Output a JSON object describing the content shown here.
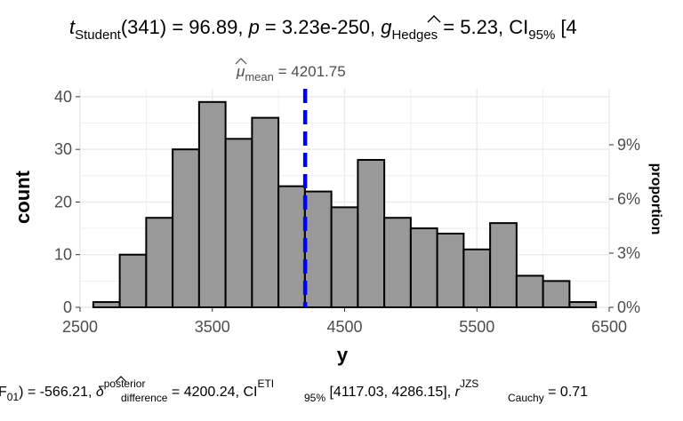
{
  "chart_data": {
    "type": "bar",
    "title": {
      "t": "t",
      "t_sub": "Student",
      "df": "(341)",
      "stat": " = 96.89, ",
      "p": "p",
      "p_val": " = 3.23e-250, ",
      "g": "g",
      "g_sub": "Hedges",
      "g_val": " = 5.23, CI",
      "ci_sub": "95%",
      "ci_val": " [4"
    },
    "caption": {
      "lead": "F",
      "lead_sub": "01",
      "lead_close": ") = -566.21, ",
      "delta_sup": "posterior",
      "delta_sub": "difference",
      "delta_val": " = 4200.24, CI",
      "ci_sup": "ETI",
      "ci_sub": "95%",
      "ci_val": " [4117.03, 4286.15], ",
      "r": "r",
      "r_sup": "JZS",
      "r_sub": "Cauchy",
      "r_val": " = 0.71"
    },
    "mean_label": {
      "mu": "μ",
      "sub": "mean",
      "value": " = 4201.75"
    },
    "xlabel": "y",
    "ylabel": "count",
    "y2label": "proportion",
    "xlim": [
      2500,
      6500
    ],
    "ylim": [
      0,
      41.5
    ],
    "x_ticks": [
      2500,
      3500,
      4500,
      5500,
      6500
    ],
    "y_ticks": [
      0,
      10,
      20,
      30,
      40
    ],
    "y2_ticks": [
      "0%",
      "3%",
      "6%",
      "9%"
    ],
    "y2_tick_counts": [
      0,
      10.29,
      20.58,
      30.87
    ],
    "mean": 4201.75,
    "bin_width": 200,
    "bins": [
      {
        "center": 2700,
        "count": 1
      },
      {
        "center": 2900,
        "count": 10
      },
      {
        "center": 3100,
        "count": 17
      },
      {
        "center": 3300,
        "count": 30
      },
      {
        "center": 3500,
        "count": 39
      },
      {
        "center": 3700,
        "count": 32
      },
      {
        "center": 3900,
        "count": 36
      },
      {
        "center": 4100,
        "count": 23
      },
      {
        "center": 4300,
        "count": 22
      },
      {
        "center": 4500,
        "count": 19
      },
      {
        "center": 4700,
        "count": 28
      },
      {
        "center": 4900,
        "count": 17
      },
      {
        "center": 5100,
        "count": 15
      },
      {
        "center": 5300,
        "count": 14
      },
      {
        "center": 5500,
        "count": 11
      },
      {
        "center": 5700,
        "count": 16
      },
      {
        "center": 5900,
        "count": 6
      },
      {
        "center": 6100,
        "count": 5
      },
      {
        "center": 6300,
        "count": 1
      }
    ],
    "colors": {
      "bar_fill": "#999999",
      "bar_stroke": "#000000",
      "mean_line": "#0000ff",
      "grid": "#ebebeb"
    }
  }
}
